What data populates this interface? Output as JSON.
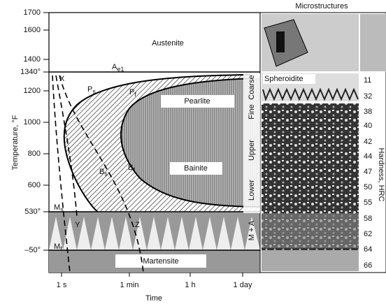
{
  "title": "Microstructures",
  "y_axis": {
    "label": "Temperature, °F",
    "ticks": [
      "1700",
      "1600",
      "1400",
      "1340°",
      "1200",
      "1000",
      "800",
      "600",
      "530°",
      "–50°"
    ]
  },
  "x_axis": {
    "label": "Time",
    "ticks": [
      "1 s",
      "1 min",
      "1 h",
      "1 day"
    ]
  },
  "regions": [
    "Austenite",
    "Pearlite",
    "Bainite",
    "Martensite"
  ],
  "curve_labels": {
    "ae1": {
      "base": "A",
      "sub": "e1"
    },
    "ps": {
      "base": "P",
      "sub": "s"
    },
    "pf": {
      "base": "P",
      "sub": "f"
    },
    "bs": {
      "base": "B",
      "sub": "s"
    },
    "bf": {
      "base": "B",
      "sub": "f"
    },
    "ms": {
      "base": "M",
      "sub": "s"
    },
    "mf": {
      "base": "M",
      "sub": "f"
    },
    "x": "X",
    "y": "Y",
    "z": "Z"
  },
  "structure_labels": [
    "Coarse",
    "Fine",
    "Upper",
    "Lower",
    "M + A"
  ],
  "spheroidite": "Spheroidite",
  "hardness": {
    "label": "Hardness, HRC",
    "values": [
      11,
      32,
      38,
      40,
      42,
      44,
      47,
      50,
      55,
      58,
      62,
      64,
      66
    ]
  }
}
